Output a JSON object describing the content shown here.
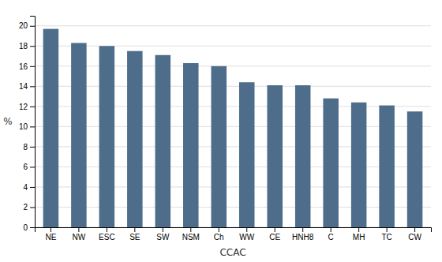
{
  "chart_data": {
    "type": "bar",
    "categories": [
      "NE",
      "NW",
      "ESC",
      "SE",
      "SW",
      "NSM",
      "Ch",
      "WW",
      "CE",
      "HNH8",
      "C",
      "MH",
      "TC",
      "CW"
    ],
    "values": [
      19.7,
      18.3,
      18.0,
      17.5,
      17.1,
      16.3,
      16.0,
      14.4,
      14.1,
      14.1,
      12.8,
      12.4,
      12.1,
      11.5
    ],
    "color": "#4d6d8a",
    "xlabel": "CCAC",
    "ylabel": "%",
    "ylim": [
      0,
      21
    ],
    "yticks": [
      0,
      2,
      4,
      6,
      8,
      10,
      12,
      14,
      16,
      18,
      20
    ],
    "grid": true
  }
}
